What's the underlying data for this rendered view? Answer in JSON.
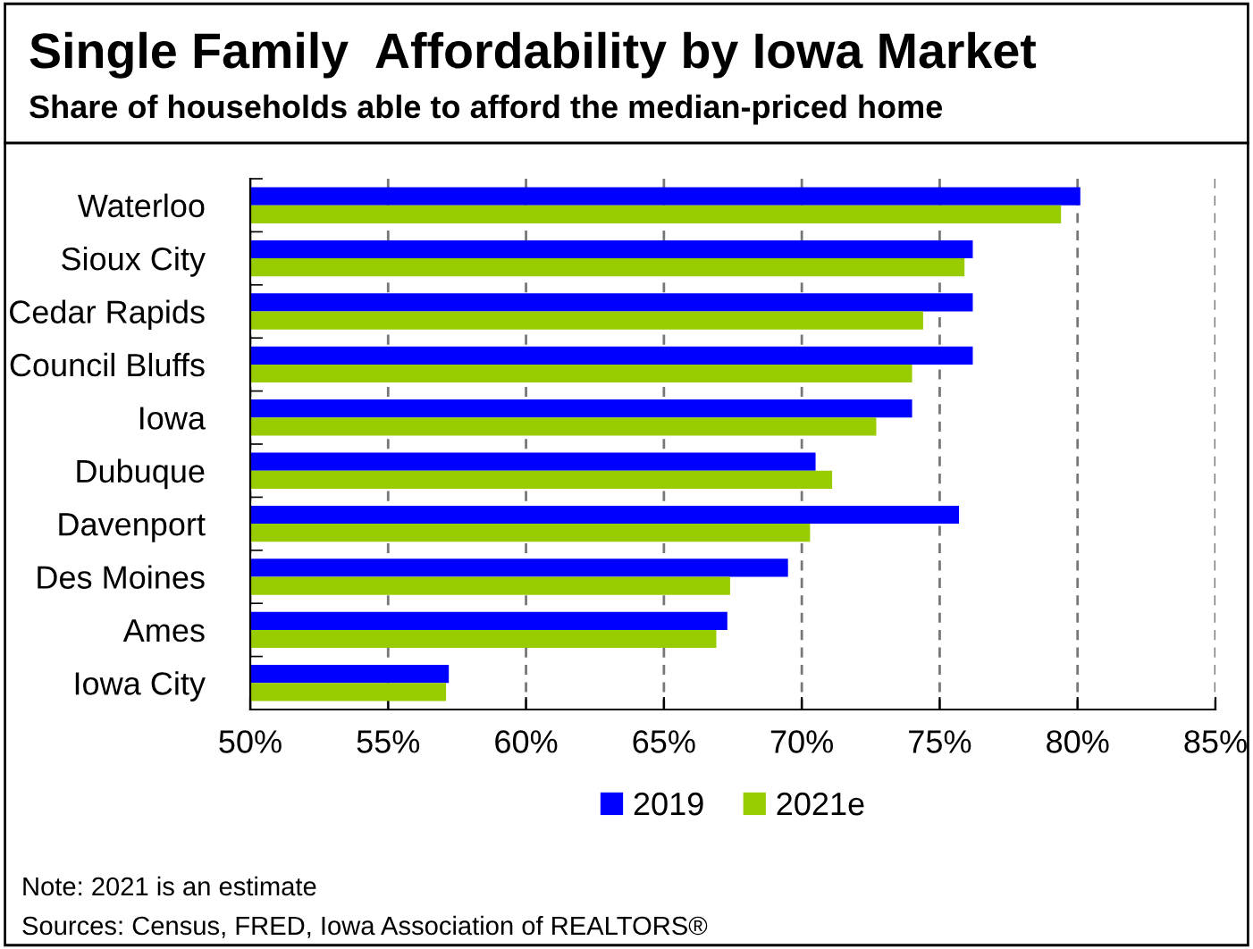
{
  "chart_data": {
    "type": "bar",
    "orientation": "horizontal",
    "title": "Single Family  Affordability by Iowa Market",
    "subtitle": "Share of households able to afford the median-priced home",
    "categories": [
      "Waterloo",
      "Sioux City",
      "Cedar Rapids",
      "Council Bluffs",
      "Iowa",
      "Dubuque",
      "Davenport",
      "Des Moines",
      "Ames",
      "Iowa City"
    ],
    "series": [
      {
        "name": "2019",
        "color": "#0000ff",
        "values": [
          80.1,
          76.2,
          76.2,
          76.2,
          74.0,
          70.5,
          75.7,
          69.5,
          67.3,
          57.2
        ]
      },
      {
        "name": "2021e",
        "color": "#99cc00",
        "values": [
          79.4,
          75.9,
          74.4,
          74.0,
          72.7,
          71.1,
          70.3,
          67.4,
          66.9,
          57.1
        ]
      }
    ],
    "xlim": [
      50,
      85
    ],
    "xticks": [
      {
        "value": 50,
        "label": "50%"
      },
      {
        "value": 55,
        "label": "55%"
      },
      {
        "value": 60,
        "label": "60%"
      },
      {
        "value": 65,
        "label": "65%"
      },
      {
        "value": 70,
        "label": "70%"
      },
      {
        "value": 75,
        "label": "75%"
      },
      {
        "value": 80,
        "label": "80%"
      },
      {
        "value": 85,
        "label": "85%"
      }
    ],
    "grid": "x",
    "legend": "bottom",
    "annotations": [
      "Note: 2021 is an estimate",
      "Sources: Census, FRED, Iowa Association of REALTORS®"
    ]
  }
}
